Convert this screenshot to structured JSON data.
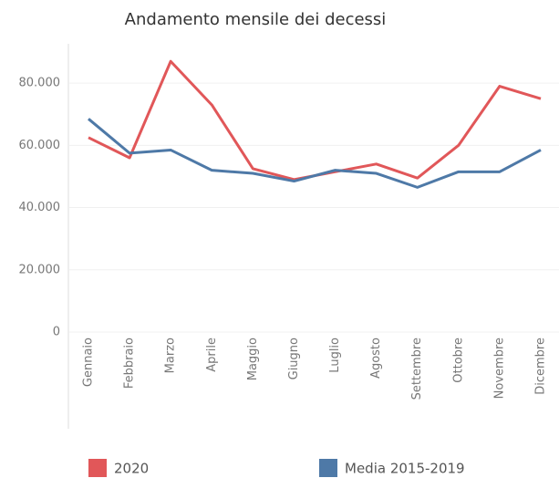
{
  "chart_data": {
    "type": "line",
    "title": "Andamento mensile dei decessi",
    "categories": [
      "Gennaio",
      "Febbraio",
      "Marzo",
      "Aprile",
      "Maggio",
      "Giugno",
      "Luglio",
      "Agosto",
      "Settembre",
      "Ottobre",
      "Novembre",
      "Dicembre"
    ],
    "series": [
      {
        "name": "2020",
        "color": "#e15759",
        "values": [
          62500,
          56000,
          87000,
          73000,
          52500,
          49000,
          51500,
          54000,
          49500,
          60000,
          79000,
          75000
        ]
      },
      {
        "name": "Media 2015-2019",
        "color": "#4e79a7",
        "values": [
          68500,
          57500,
          58500,
          52000,
          51000,
          48500,
          52000,
          51000,
          46500,
          51500,
          51500,
          58500
        ]
      }
    ],
    "ylim": [
      0,
      90000
    ],
    "yticks": [
      0,
      {
        "value": 20000,
        "label": "20.000"
      },
      {
        "value": 40000,
        "label": "40.000"
      },
      {
        "value": 60000,
        "label": "60.000"
      },
      {
        "value": 80000,
        "label": "80.000"
      }
    ],
    "grid": true,
    "legend": "bottom"
  }
}
